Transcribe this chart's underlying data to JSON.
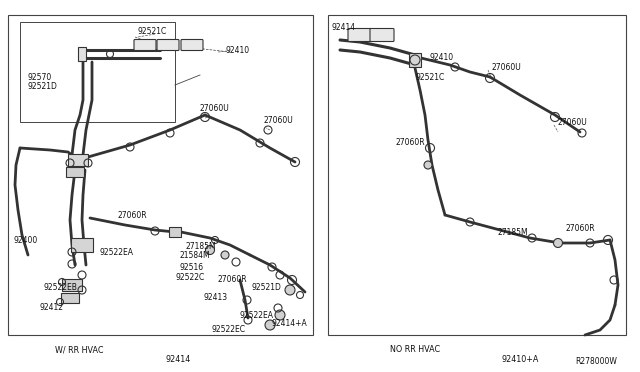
{
  "bg_color": "#ffffff",
  "border_color": "#555555",
  "line_color": "#333333",
  "text_color": "#111111",
  "diagram_ref": "R278000W",
  "left_label": "W/ RR HVAC",
  "right_label": "NO RR HVAC",
  "left_bottom_label": "92414",
  "right_bottom_label": "92410+A",
  "font_size": 5.5
}
